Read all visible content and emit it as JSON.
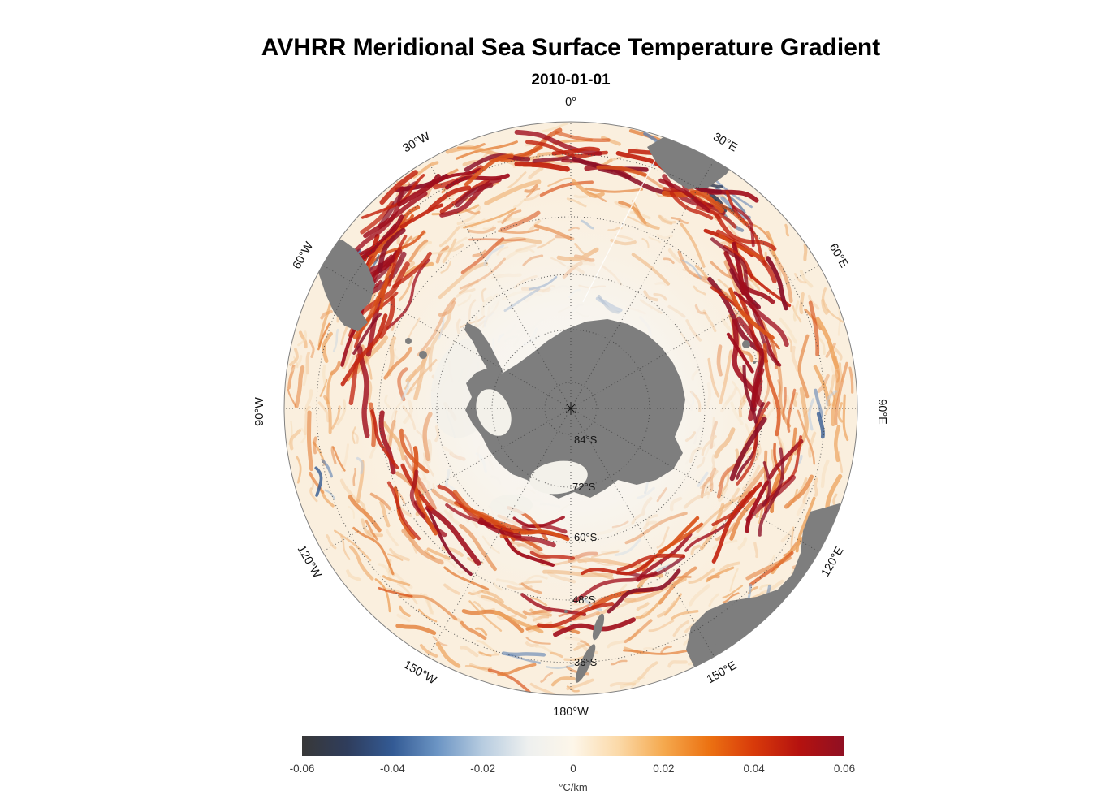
{
  "title": "AVHRR Meridional Sea Surface Temperature Gradient",
  "subtitle": "2010-01-01",
  "map": {
    "meridian_labels": [
      "0°",
      "30°E",
      "60°E",
      "90°E",
      "120°E",
      "150°E",
      "180°W",
      "150°W",
      "120°W",
      "90°W",
      "60°W",
      "30°W"
    ],
    "parallel_labels": [
      "84°S",
      "72°S",
      "60°S",
      "48°S",
      "36°S"
    ]
  },
  "colorbar": {
    "ticks": [
      "-0.06",
      "-0.04",
      "-0.02",
      "0",
      "0.02",
      "0.04",
      "0.06"
    ],
    "unit": "°C/km",
    "gradient": [
      "#383838",
      "#2f3d5c",
      "#335a94",
      "#6c95c4",
      "#b7cce0",
      "#eef0ef",
      "#fdf6e9",
      "#fbd9a8",
      "#f5a94e",
      "#ec7212",
      "#d83a0a",
      "#b5120f",
      "#8f1023"
    ]
  },
  "colors": {
    "land": "#7e7e7e",
    "ocean_base": "#faefde",
    "ice": "#f3f1ea",
    "graticule": "#3f3f3f",
    "filament_warm": [
      "#f6ddbb",
      "#f2c392",
      "#eda45f",
      "#e4803a",
      "#d9531a",
      "#c22410",
      "#a00d1c",
      "#8c0f26"
    ],
    "filament_cool": [
      "#dbe4ef",
      "#b9cce2",
      "#8aa9cd",
      "#5b7fb2",
      "#2f568f"
    ]
  },
  "chart_data": {
    "type": "heatmap",
    "title": "AVHRR Meridional Sea Surface Temperature Gradient",
    "date": "2010-01-01",
    "variable": "Meridional sea surface temperature gradient",
    "units": "°C/km",
    "projection": "South polar stereographic, Antarctica centered, 0° longitude at top, east to the right",
    "color_scale": {
      "type": "diverging",
      "min": -0.06,
      "max": 0.06,
      "ticks": [
        -0.06,
        -0.04,
        -0.02,
        0,
        0.02,
        0.04,
        0.06
      ],
      "negative_colors": "dark gray-blue through blue to pale blue",
      "zero_color": "white",
      "positive_colors": "cream through orange to dark red"
    },
    "graticule": {
      "meridians_interval_deg": 30,
      "meridian_labels": [
        "0°",
        "30°E",
        "60°E",
        "90°E",
        "120°E",
        "150°E",
        "180°W",
        "150°W",
        "120°W",
        "90°W",
        "60°W",
        "30°W"
      ],
      "parallel_labels": [
        "84°S",
        "72°S",
        "60°S",
        "48°S",
        "36°S"
      ],
      "style": "dotted"
    },
    "land_masses_visible": [
      "Antarctica with white ice shelves (center)",
      "southern South America and Falkland Islands (upper left)",
      "southern Africa (upper right)",
      "southern Australia and Tasmania (lower right)",
      "New Zealand (bottom)",
      "Kerguelen Islands (right of center)"
    ],
    "notable_features": [
      "Ring of strong positive (red) SST-gradient filaments along the Antarctic Circumpolar Current",
      "Most intense red fronts near 30°E-60°E (Agulhas Return Current) and west of 60°W (Brazil-Malvinas confluence / Drake Passage)",
      "Scattered negative (blue) gradient patches, strongest near 30°E and around 60°W",
      "Near-zero (white) gradients close to the Antarctic coast and sea-ice zone",
      "Thin white data seam running from the pole toward roughly 20°E"
    ]
  }
}
